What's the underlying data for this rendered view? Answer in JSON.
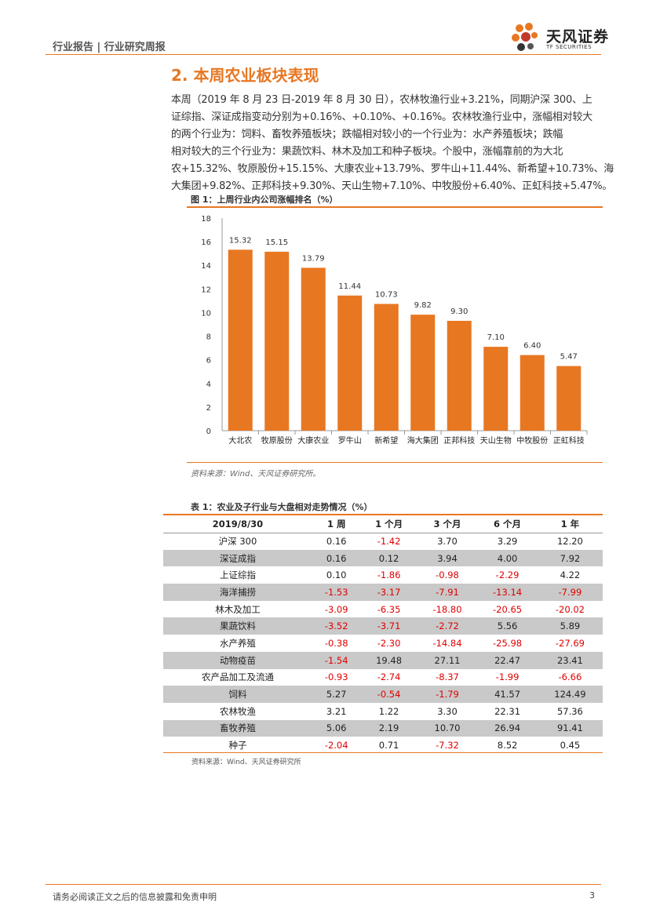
{
  "header": {
    "label": "行业报告 | 行业研究周报",
    "brand_name": "天风证券",
    "brand_sub": "TF SECURITIES"
  },
  "section": {
    "title": "2. 本周农业板块表现"
  },
  "paragraph": [
    "本周（2019 年 8 月 23 日-2019 年 8 月 30 日），农林牧渔行业+3.21%，同期沪深 300、上",
    "证综指、深证成指变动分别为+0.16%、+0.10%、+0.16%。农林牧渔行业中，涨幅相对较大",
    "的两个行业为：饲料、畜牧养殖板块；跌幅相对较小的一个行业为：水产养殖板块；跌幅",
    "相对较大的三个行业为：果蔬饮料、林木及加工和种子板块。个股中，涨幅靠前的为大北",
    "农+15.32%、牧原股份+15.15%、大康农业+13.79%、罗牛山+11.44%、新希望+10.73%、海",
    "大集团+9.82%、正邦科技+9.30%、天山生物+7.10%、中牧股份+6.40%、正虹科技+5.47%。"
  ],
  "figure": {
    "title": "图 1：上周行业内公司涨幅排名（%）",
    "source": "资料来源：Wind、天风证券研究所。"
  },
  "chart_data": {
    "type": "bar",
    "title": "上周行业内公司涨幅排名（%）",
    "categories": [
      "大北农",
      "牧原股份",
      "大康农业",
      "罗牛山",
      "新希望",
      "海大集团",
      "正邦科技",
      "天山生物",
      "中牧股份",
      "正虹科技"
    ],
    "values": [
      15.32,
      15.15,
      13.79,
      11.44,
      10.73,
      9.82,
      9.3,
      7.1,
      6.4,
      5.47
    ],
    "value_labels": [
      "15.32",
      "15.15",
      "13.79",
      "11.44",
      "10.73",
      "9.82",
      "9.30",
      "7.10",
      "6.40",
      "5.47"
    ],
    "yticks": [
      "0",
      "2",
      "4",
      "6",
      "8",
      "10",
      "12",
      "14",
      "16",
      "18"
    ],
    "ylim": [
      0,
      18
    ],
    "bar_color": "#e87722",
    "xlabel": "",
    "ylabel": ""
  },
  "table": {
    "title": "表 1：农业及子行业与大盘相对走势情况（%）",
    "headers": [
      "2019/8/30",
      "1 周",
      "1 个月",
      "3 个月",
      "6 个月",
      "1 年"
    ],
    "rows": [
      [
        "沪深 300",
        "0.16",
        "-1.42",
        "3.70",
        "3.29",
        "12.20"
      ],
      [
        "深证成指",
        "0.16",
        "0.12",
        "3.94",
        "4.00",
        "7.92"
      ],
      [
        "上证综指",
        "0.10",
        "-1.86",
        "-0.98",
        "-2.29",
        "4.22"
      ],
      [
        "海洋捕捞",
        "-1.53",
        "-3.17",
        "-7.91",
        "-13.14",
        "-7.99"
      ],
      [
        "林木及加工",
        "-3.09",
        "-6.35",
        "-18.80",
        "-20.65",
        "-20.02"
      ],
      [
        "果蔬饮料",
        "-3.52",
        "-3.71",
        "-2.72",
        "5.56",
        "5.89"
      ],
      [
        "水产养殖",
        "-0.38",
        "-2.30",
        "-14.84",
        "-25.98",
        "-27.69"
      ],
      [
        "动物疫苗",
        "-1.54",
        "19.48",
        "27.11",
        "22.47",
        "23.41"
      ],
      [
        "农产品加工及流通",
        "-0.93",
        "-2.74",
        "-8.37",
        "-1.99",
        "-6.66"
      ],
      [
        "饲料",
        "5.27",
        "-0.54",
        "-1.79",
        "41.57",
        "124.49"
      ],
      [
        "农林牧渔",
        "3.21",
        "1.22",
        "3.30",
        "22.31",
        "57.36"
      ],
      [
        "畜牧养殖",
        "5.06",
        "2.19",
        "10.70",
        "26.94",
        "91.41"
      ],
      [
        "种子",
        "-2.04",
        "0.71",
        "-7.32",
        "8.52",
        "0.45"
      ]
    ],
    "source": "资料来源：Wind、天风证券研究所"
  },
  "footer": {
    "disclaimer": "请务必阅读正文之后的信息披露和免责申明",
    "page": "3"
  },
  "colors": {
    "accent": "#e87722",
    "negative": "#e00000",
    "shade": "#c9c9c9"
  }
}
